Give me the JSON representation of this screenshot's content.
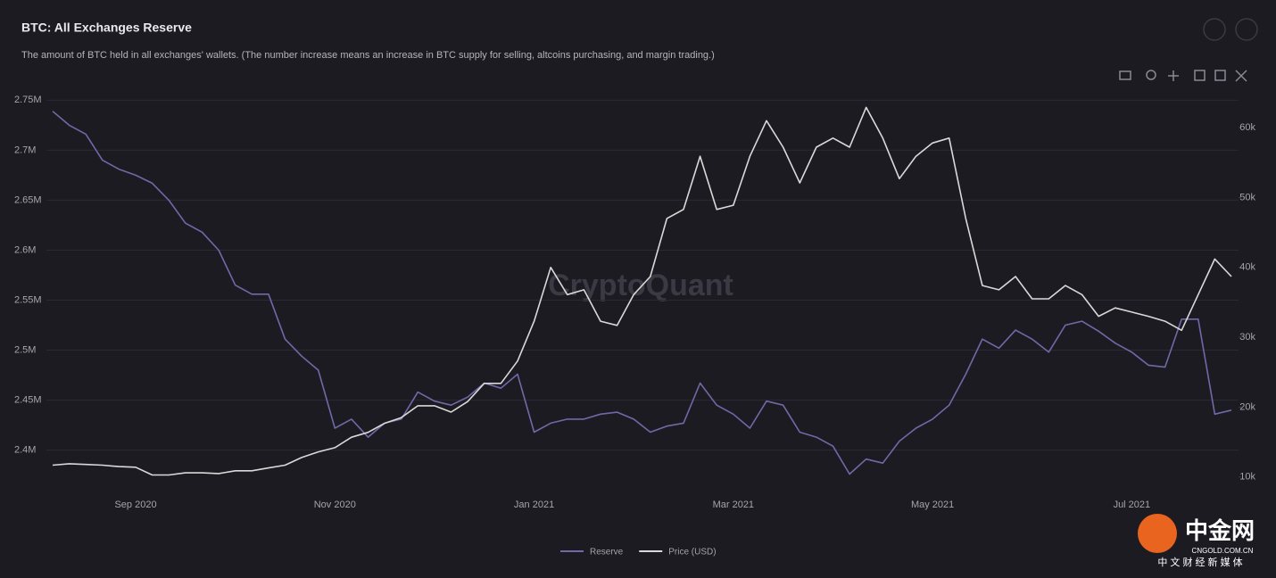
{
  "chart_data": {
    "type": "line",
    "title": "BTC: All Exchanges Reserve",
    "subtitle": "The amount of BTC held in all exchanges' wallets. (The number increase means an increase in BTC supply for selling, altcoins purchasing, and margin trading.)",
    "watermark": "CryptoQuant",
    "categories": [
      null,
      null,
      null,
      null,
      null,
      "Sep 2020",
      null,
      null,
      null,
      null,
      null,
      null,
      null,
      null,
      null,
      null,
      null,
      "Nov 2020",
      null,
      null,
      null,
      null,
      null,
      null,
      null,
      null,
      null,
      null,
      null,
      "Jan 2021",
      null,
      null,
      null,
      null,
      null,
      null,
      null,
      null,
      null,
      null,
      null,
      "Mar 2021",
      null,
      null,
      null,
      null,
      null,
      null,
      null,
      null,
      null,
      null,
      null,
      "May 2021",
      null,
      null,
      null,
      null,
      null,
      null,
      null,
      null,
      null,
      null,
      null,
      "Jul 2021",
      null,
      null,
      null,
      null,
      null,
      null
    ],
    "series": [
      {
        "name": "Reserve",
        "color": "#6f69a8",
        "axis": "y",
        "values": [
          2739000,
          2725000,
          2716000,
          2690000,
          2681000,
          2675000,
          2667000,
          2650000,
          2627000,
          2618000,
          2600000,
          2565000,
          2556000,
          2556000,
          2511000,
          2494000,
          2480000,
          2422000,
          2431000,
          2413000,
          2427000,
          2431000,
          2458000,
          2449000,
          2445000,
          2453000,
          2467000,
          2462000,
          2476000,
          2418000,
          2427000,
          2431000,
          2431000,
          2436000,
          2438000,
          2431000,
          2418000,
          2424000,
          2427000,
          2467000,
          2445000,
          2436000,
          2422000,
          2449000,
          2445000,
          2418000,
          2413000,
          2404000,
          2376000,
          2391000,
          2387000,
          2409000,
          2422000,
          2431000,
          2445000,
          2476000,
          2511000,
          2502000,
          2520000,
          2511000,
          2498000,
          2525000,
          2529000,
          2519000,
          2507000,
          2498000,
          2485000,
          2483000,
          2531000,
          2531000,
          2436000,
          2440000
        ]
      },
      {
        "name": "Price (USD)",
        "color": "#d9d9d9",
        "axis": "y2",
        "values": [
          11700,
          11900,
          11800,
          11700,
          11500,
          11400,
          10300,
          10300,
          10600,
          10600,
          10500,
          10900,
          10900,
          11300,
          11700,
          12800,
          13600,
          14200,
          15700,
          16400,
          17700,
          18500,
          20200,
          20200,
          19300,
          20800,
          23400,
          23400,
          26600,
          32300,
          40000,
          36100,
          36800,
          32300,
          31700,
          36100,
          38700,
          47000,
          48300,
          55900,
          48300,
          48900,
          55900,
          61000,
          57200,
          52100,
          57200,
          58500,
          57200,
          62900,
          58500,
          52700,
          55900,
          57800,
          58500,
          47000,
          37400,
          36800,
          38700,
          35500,
          35500,
          37400,
          36100,
          33000,
          34200,
          33600,
          33000,
          32300,
          31000,
          36100,
          41200,
          38700
        ]
      }
    ],
    "ylim": [
      2364000,
      2761000
    ],
    "yticks": [
      {
        "value": 2400000,
        "label": "2.4M"
      },
      {
        "value": 2450000,
        "label": "2.45M"
      },
      {
        "value": 2500000,
        "label": "2.5M"
      },
      {
        "value": 2550000,
        "label": "2.55M"
      },
      {
        "value": 2600000,
        "label": "2.6M"
      },
      {
        "value": 2650000,
        "label": "2.65M"
      },
      {
        "value": 2700000,
        "label": "2.7M"
      },
      {
        "value": 2750000,
        "label": "2.75M"
      }
    ],
    "y2lim": [
      8700,
      65500
    ],
    "y2ticks": [
      {
        "value": 10000,
        "label": "10k"
      },
      {
        "value": 20000,
        "label": "20k"
      },
      {
        "value": 30000,
        "label": "30k"
      },
      {
        "value": 40000,
        "label": "40k"
      },
      {
        "value": 50000,
        "label": "50k"
      },
      {
        "value": 60000,
        "label": "60k"
      }
    ],
    "grid": true
  },
  "branding": {
    "name": "中金网",
    "site": "CNGOLD.COM.CN",
    "slogan": "中 文 财 经 新 媒 体"
  }
}
